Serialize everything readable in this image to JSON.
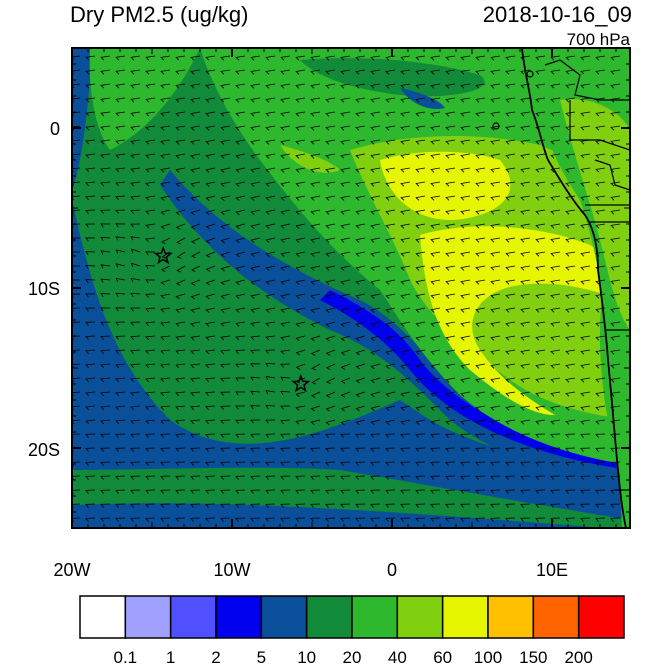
{
  "header": {
    "title": "Dry PM2.5 (ug/kg)",
    "datetime": "2018-10-16_09",
    "level": "700 hPa"
  },
  "axes": {
    "y_ticks": [
      {
        "lat": 0,
        "label": "0"
      },
      {
        "lat": -10,
        "label": "10S"
      },
      {
        "lat": -20,
        "label": "20S"
      }
    ],
    "x_ticks": [
      {
        "lon": -20,
        "label": "20W"
      },
      {
        "lon": -10,
        "label": "10W"
      },
      {
        "lon": 0,
        "label": "0"
      },
      {
        "lon": 10,
        "label": "10E"
      }
    ],
    "lon_range": [
      -20,
      15
    ],
    "lat_range": [
      -25,
      5
    ]
  },
  "colorbar": {
    "colors": [
      "#ffffff",
      "#a0a0ff",
      "#5050ff",
      "#0000ee",
      "#0a4f9a",
      "#118a3a",
      "#2db82d",
      "#80d010",
      "#e6f500",
      "#ffc000",
      "#ff6400",
      "#ff0000"
    ],
    "labels": [
      "0.1",
      "1",
      "2",
      "5",
      "10",
      "20",
      "40",
      "60",
      "100",
      "150",
      "200"
    ]
  },
  "markers": [
    {
      "name": "star",
      "lon": -14.3,
      "lat": -8.0
    },
    {
      "name": "star",
      "lon": -5.7,
      "lat": -16.0
    }
  ]
}
